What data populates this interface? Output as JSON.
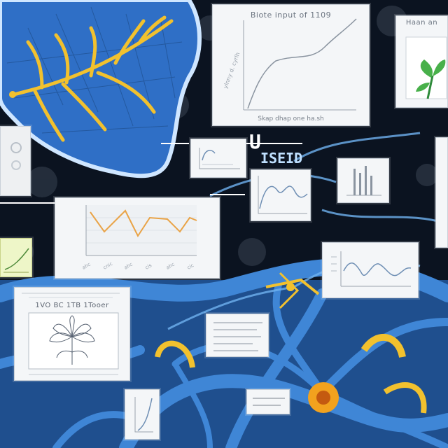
{
  "colors": {
    "leaf": "#2f6fc6",
    "leaf_outline": "#cfe6ff",
    "vein": "#f2c12e",
    "network": "#3f86d6",
    "dark_bg": "#0b1320",
    "card_bg": "#f4f6f8",
    "plot_line": "#8a94a0",
    "orange_line": "#e9a346",
    "blue_line": "#6f8fb4",
    "plant_green": "#48b04a"
  },
  "panels": {
    "top_chart": {
      "title": "Biote input of 1109",
      "caption": "Skap dhap one ha.sh"
    },
    "top_right": {
      "title": "Haan an"
    },
    "mid_label": {
      "text": "ISEID"
    },
    "flower_panel": {
      "title": "1VO BC 1TB 1Tooer"
    }
  },
  "icons": [
    "leaf-icon",
    "flower-icon",
    "plant-icon",
    "neuron-icon"
  ]
}
